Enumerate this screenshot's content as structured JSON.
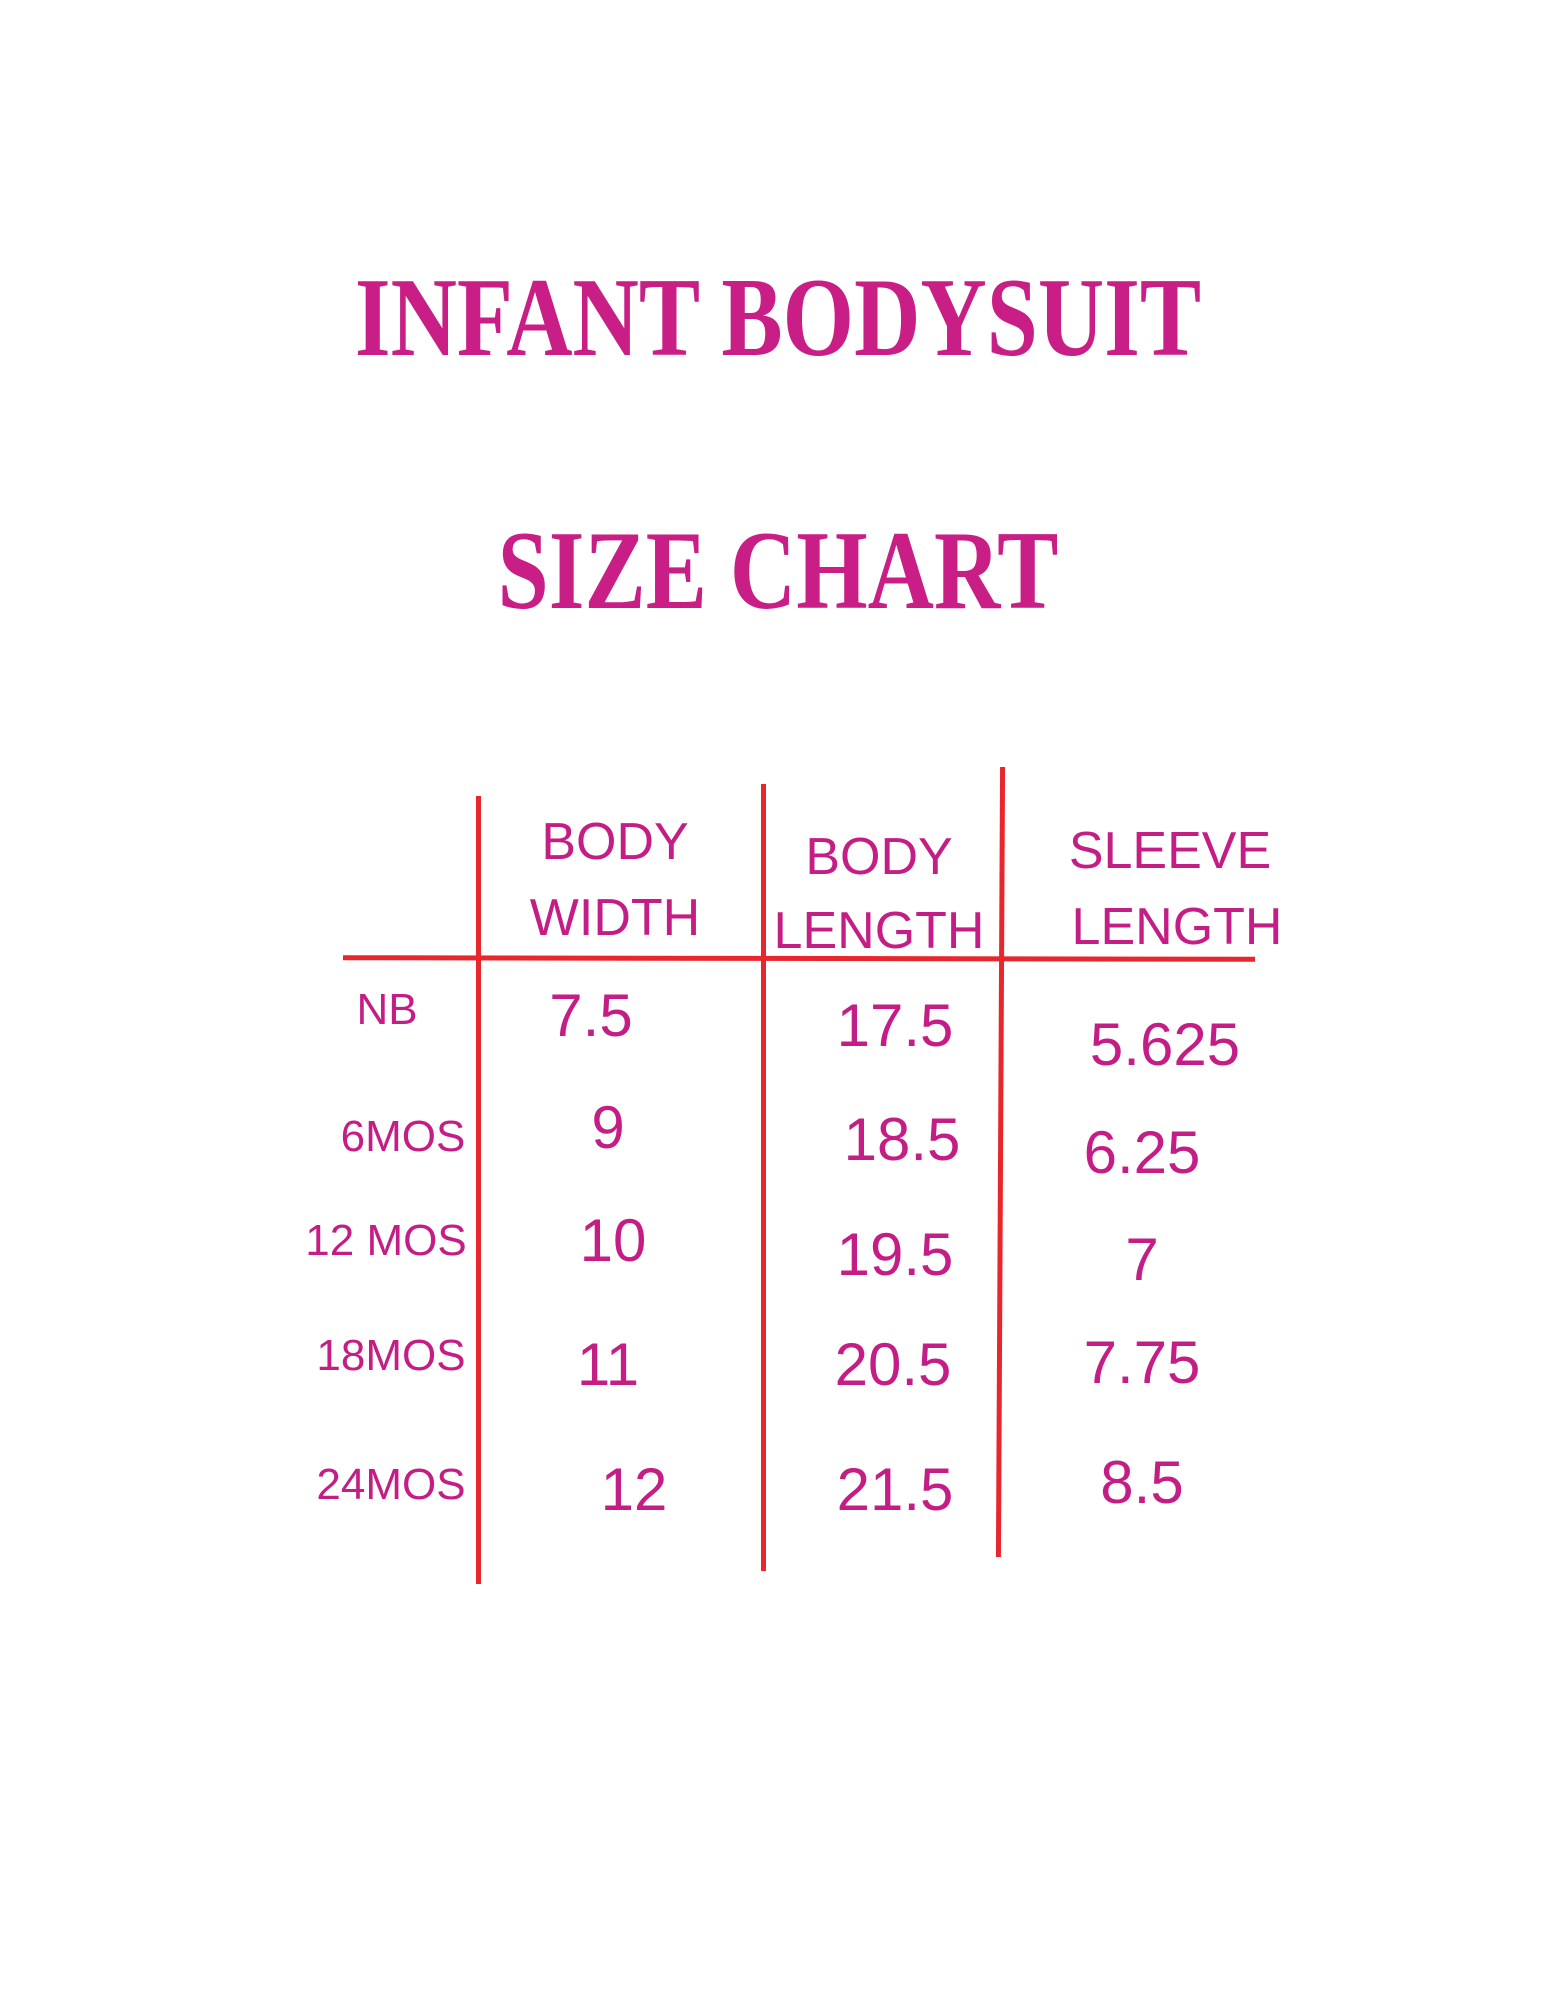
{
  "title": {
    "line1": "INFANT BODYSUIT",
    "line2": "SIZE CHART"
  },
  "colors": {
    "text": "#c41e86",
    "grid_lines": "#e8262b"
  },
  "table": {
    "headers": [
      {
        "line1": "BODY",
        "line2": "WIDTH"
      },
      {
        "line1": "BODY",
        "line2": "LENGTH"
      },
      {
        "line1": "SLEEVE",
        "line2": "LENGTH"
      }
    ],
    "rows": [
      {
        "size": "NB",
        "values": [
          "7.5",
          "17.5",
          "5.625"
        ]
      },
      {
        "size": "6MOS",
        "values": [
          "9",
          "18.5",
          "6.25"
        ]
      },
      {
        "size": "12 MOS",
        "values": [
          "10",
          "19.5",
          "7"
        ]
      },
      {
        "size": "18MOS",
        "values": [
          "11",
          "20.5",
          "7.75"
        ]
      },
      {
        "size": "24MOS",
        "values": [
          "12",
          "21.5",
          "8.5"
        ]
      }
    ]
  }
}
